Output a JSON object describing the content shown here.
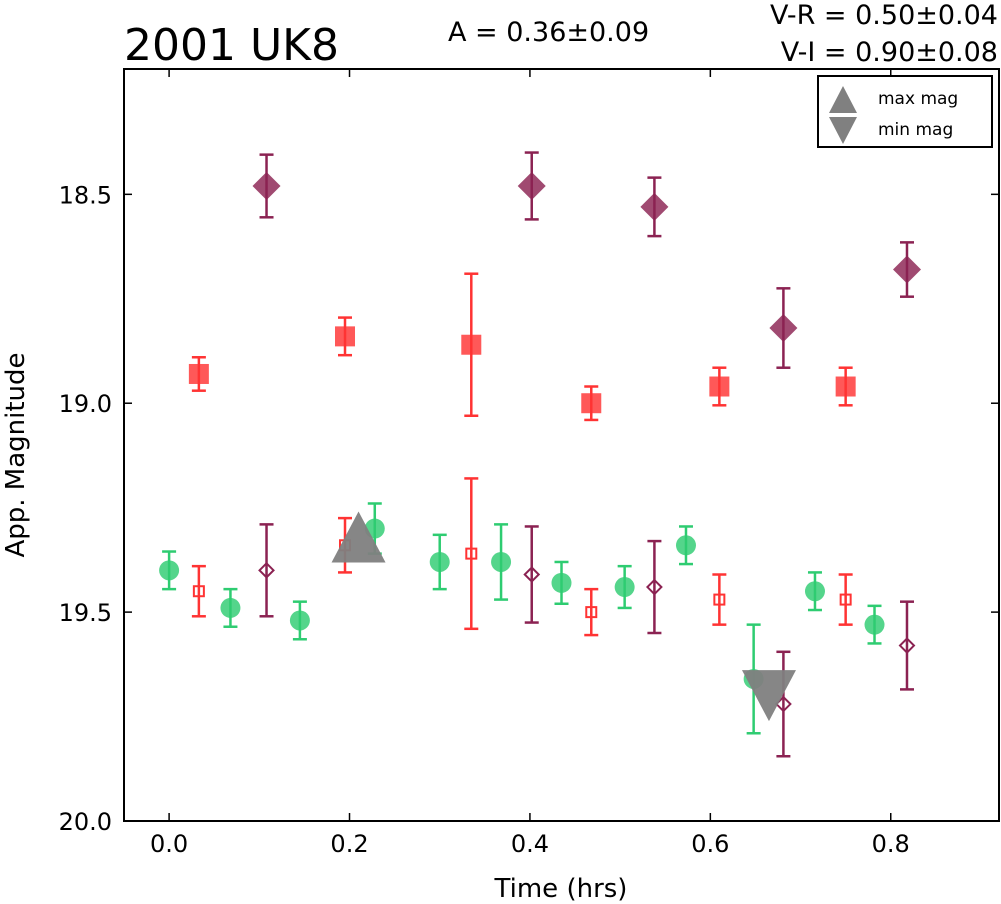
{
  "chart_data": {
    "type": "scatter",
    "title": "2001 UK8",
    "amplitude_text": "A  = 0.36±0.09",
    "color_index_text": [
      "V-R = 0.50±0.04",
      "V-I  = 0.90±0.08"
    ],
    "xlabel": "Time (hrs)",
    "ylabel": "App. Magnitude",
    "xlim": [
      -0.05,
      0.92
    ],
    "ylim": [
      20.0,
      18.2
    ],
    "y_inverted": true,
    "xticks": [
      0.0,
      0.2,
      0.4,
      0.6,
      0.8
    ],
    "xtick_labels": [
      "0.0",
      "0.2",
      "0.4",
      "0.6",
      "0.8"
    ],
    "yticks": [
      18.5,
      19.0,
      19.5,
      20.0
    ],
    "ytick_labels": [
      "18.5",
      "19.0",
      "19.5",
      "20.0"
    ],
    "grid": false,
    "legend": {
      "placement": "top-right",
      "entries": [
        {
          "label": "max mag",
          "marker": "triangle-up",
          "color": "#808080"
        },
        {
          "label": "min mag",
          "marker": "triangle-down",
          "color": "#808080"
        }
      ]
    },
    "series": [
      {
        "marker": "circle",
        "color": "#2ecc71",
        "filled": true,
        "points": [
          {
            "x": 0.0,
            "y": 19.4,
            "err": 0.045
          },
          {
            "x": 0.068,
            "y": 19.49,
            "err": 0.045
          },
          {
            "x": 0.145,
            "y": 19.52,
            "err": 0.045
          },
          {
            "x": 0.228,
            "y": 19.3,
            "err": 0.06
          },
          {
            "x": 0.3,
            "y": 19.38,
            "err": 0.065
          },
          {
            "x": 0.368,
            "y": 19.38,
            "err": 0.09
          },
          {
            "x": 0.435,
            "y": 19.43,
            "err": 0.05
          },
          {
            "x": 0.505,
            "y": 19.44,
            "err": 0.05
          },
          {
            "x": 0.573,
            "y": 19.34,
            "err": 0.045
          },
          {
            "x": 0.648,
            "y": 19.66,
            "err": 0.13
          },
          {
            "x": 0.716,
            "y": 19.45,
            "err": 0.045
          },
          {
            "x": 0.782,
            "y": 19.53,
            "err": 0.045
          }
        ]
      },
      {
        "marker": "square",
        "color": "#ff3333",
        "filled": true,
        "points": [
          {
            "x": 0.033,
            "y": 18.93,
            "err": 0.04
          },
          {
            "x": 0.195,
            "y": 18.84,
            "err": 0.045
          },
          {
            "x": 0.335,
            "y": 18.86,
            "err": 0.17
          },
          {
            "x": 0.468,
            "y": 19.0,
            "err": 0.04
          },
          {
            "x": 0.61,
            "y": 18.96,
            "err": 0.045
          },
          {
            "x": 0.75,
            "y": 18.96,
            "err": 0.045
          }
        ]
      },
      {
        "marker": "diamond",
        "color": "#8b2252",
        "filled": true,
        "points": [
          {
            "x": 0.108,
            "y": 18.48,
            "err": 0.075
          },
          {
            "x": 0.402,
            "y": 18.48,
            "err": 0.08
          },
          {
            "x": 0.538,
            "y": 18.53,
            "err": 0.07
          },
          {
            "x": 0.681,
            "y": 18.82,
            "err": 0.095
          },
          {
            "x": 0.818,
            "y": 18.68,
            "err": 0.065
          }
        ]
      },
      {
        "marker": "square",
        "color": "#ff3333",
        "filled": false,
        "points": [
          {
            "x": 0.033,
            "y": 19.45,
            "err": 0.06
          },
          {
            "x": 0.195,
            "y": 19.34,
            "err": 0.065
          },
          {
            "x": 0.335,
            "y": 19.36,
            "err": 0.18
          },
          {
            "x": 0.468,
            "y": 19.5,
            "err": 0.055
          },
          {
            "x": 0.61,
            "y": 19.47,
            "err": 0.06
          },
          {
            "x": 0.75,
            "y": 19.47,
            "err": 0.06
          }
        ]
      },
      {
        "marker": "diamond",
        "color": "#8b2252",
        "filled": false,
        "points": [
          {
            "x": 0.108,
            "y": 19.4,
            "err": 0.11
          },
          {
            "x": 0.402,
            "y": 19.41,
            "err": 0.115
          },
          {
            "x": 0.538,
            "y": 19.44,
            "err": 0.11
          },
          {
            "x": 0.681,
            "y": 19.72,
            "err": 0.125
          },
          {
            "x": 0.818,
            "y": 19.58,
            "err": 0.105
          }
        ]
      }
    ],
    "annotations": [
      {
        "marker": "triangle-up",
        "label": "max mag",
        "x": 0.21,
        "y": 19.35,
        "color": "#808080"
      },
      {
        "marker": "triangle-down",
        "label": "min mag",
        "x": 0.665,
        "y": 19.67,
        "color": "#808080"
      }
    ]
  }
}
